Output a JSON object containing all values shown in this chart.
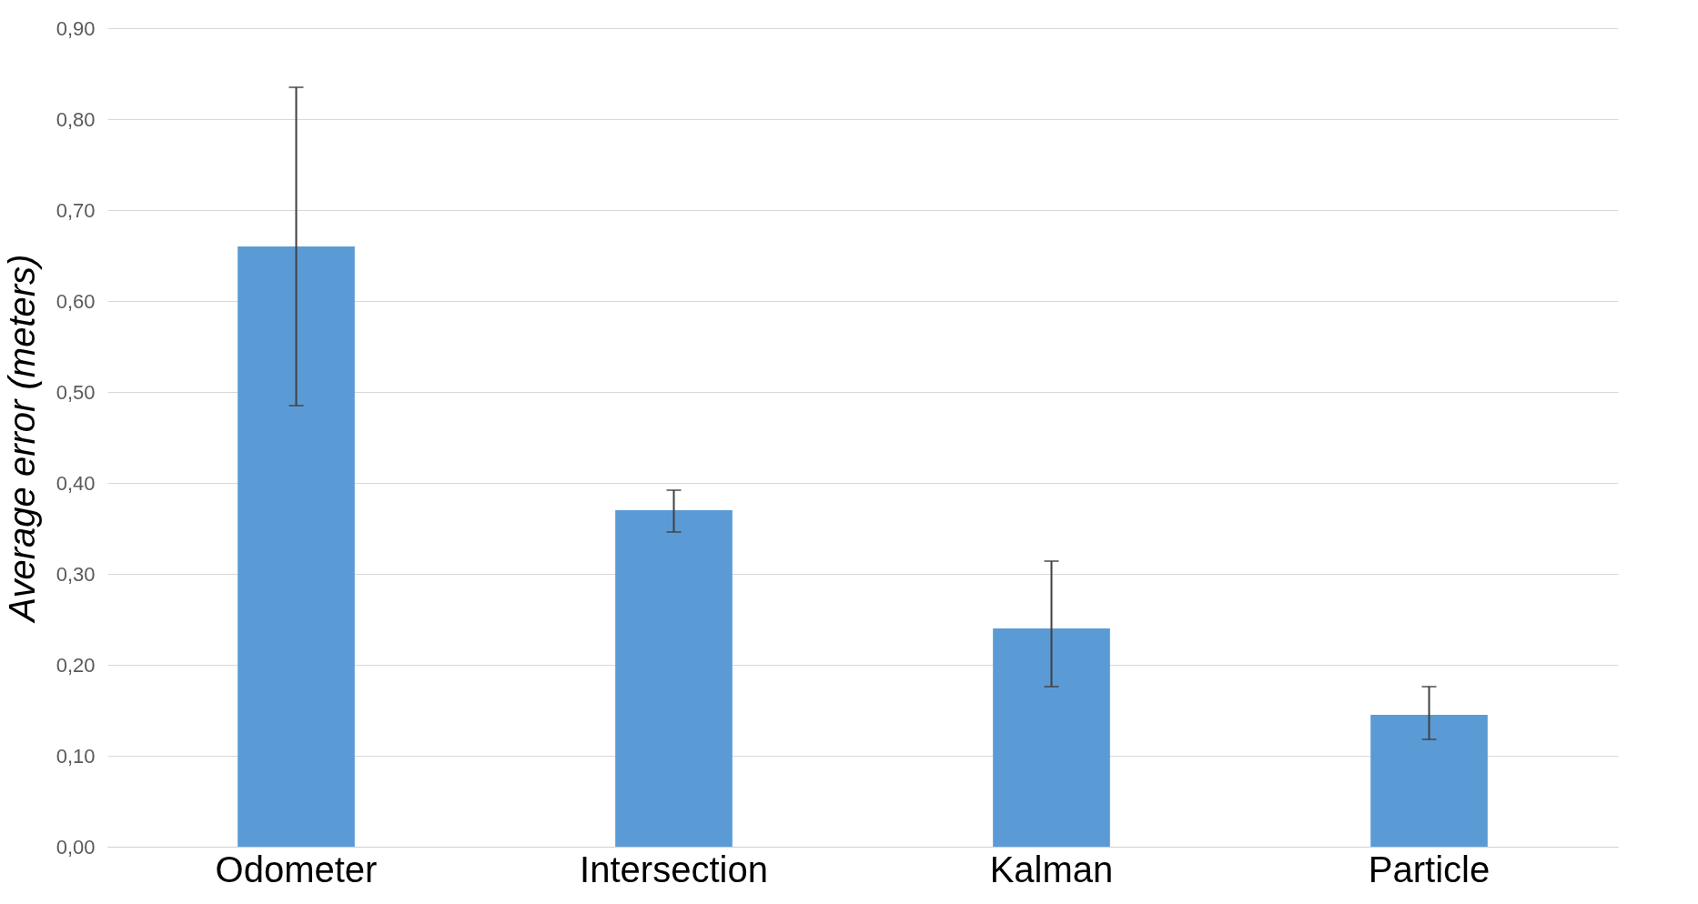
{
  "chart_data": {
    "type": "bar",
    "ylabel": "Average error (meters)",
    "categories": [
      "Odometer",
      "Intersection",
      "Kalman",
      "Particle"
    ],
    "values": [
      0.66,
      0.37,
      0.24,
      0.145
    ],
    "errors": [
      [
        0.485,
        0.835
      ],
      [
        0.346,
        0.392
      ],
      [
        0.176,
        0.314
      ],
      [
        0.118,
        0.176
      ]
    ],
    "color": "#5b9bd5",
    "ylim": [
      0,
      0.9
    ],
    "yticks": [
      {
        "value": 0,
        "label": "0,00"
      },
      {
        "value": 0.1,
        "label": "0,10"
      },
      {
        "value": 0.2,
        "label": "0,20"
      },
      {
        "value": 0.3,
        "label": "0,30"
      },
      {
        "value": 0.4,
        "label": "0,40"
      },
      {
        "value": 0.5,
        "label": "0,50"
      },
      {
        "value": 0.6,
        "label": "0,60"
      },
      {
        "value": 0.7,
        "label": "0,70"
      },
      {
        "value": 0.8,
        "label": "0,80"
      },
      {
        "value": 0.9,
        "label": "0,90"
      }
    ],
    "grid": "y"
  }
}
